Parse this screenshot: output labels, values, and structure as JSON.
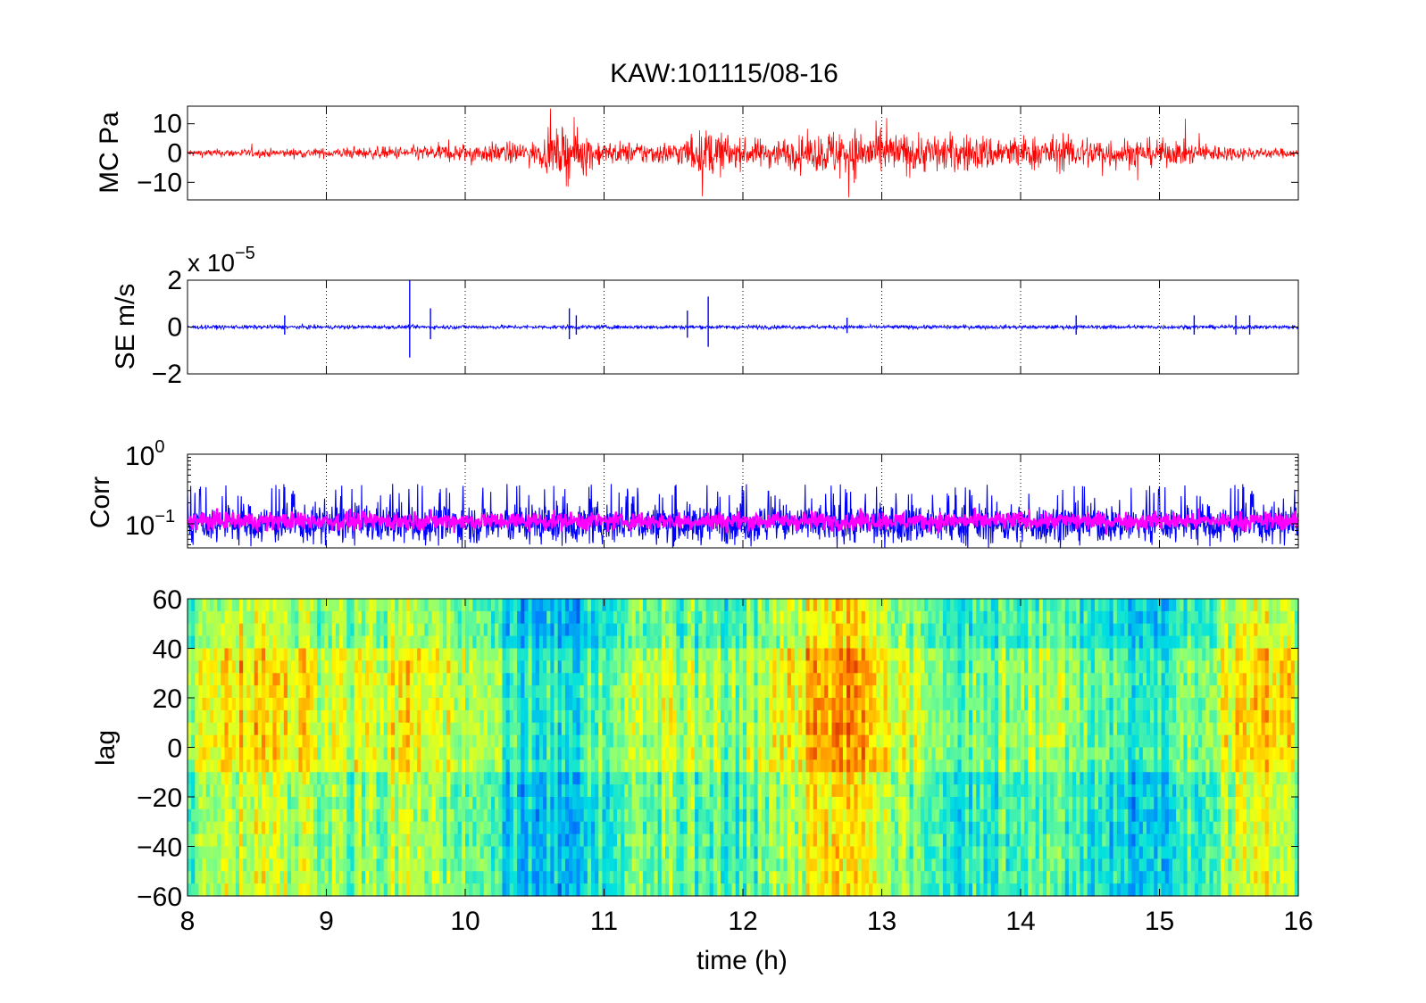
{
  "figure": {
    "title": "KAW:101115/08-16",
    "background": "#ffffff"
  },
  "chart_data": [
    {
      "type": "line",
      "ylabel": "MC Pa",
      "xlim": [
        8,
        16
      ],
      "ylim": [
        -16,
        16
      ],
      "yticks": [
        -10,
        0,
        10
      ],
      "ytick_labels": [
        "−10",
        "0",
        "10"
      ],
      "color": "#ff0000",
      "grid": "vertical-dotted",
      "series": [
        {
          "x": [
            8,
            8.5,
            9,
            9.5,
            10,
            10.5,
            10.75,
            11,
            11.5,
            11.75,
            12,
            12.5,
            12.7,
            13,
            13.5,
            14,
            14.5,
            15,
            15.5,
            16
          ],
          "envelope": [
            2,
            2.2,
            2.5,
            3.5,
            5,
            6,
            15,
            6,
            6,
            13,
            7,
            9,
            14,
            11,
            10,
            9,
            9,
            7,
            4,
            2
          ]
        }
      ]
    },
    {
      "type": "line",
      "ylabel": "SE m/s",
      "scale_label": "x 10",
      "scale_exponent": "−5",
      "xlim": [
        8,
        16
      ],
      "ylim": [
        -2,
        2
      ],
      "yticks": [
        -2,
        0,
        2
      ],
      "ytick_labels": [
        "−2",
        "0",
        "2"
      ],
      "color": "#0000ff",
      "grid": "vertical-dotted",
      "series": [
        {
          "x": [
            8,
            8.7,
            9.6,
            9.75,
            10.75,
            11.5,
            11.75,
            12.5,
            13.5,
            14.4,
            15.15,
            15.25,
            15.55,
            16
          ],
          "spike_x": [
            8.7,
            9.6,
            9.75,
            10.75,
            10.8,
            11.6,
            11.75,
            12.75,
            14.4,
            15.25,
            15.55,
            15.65
          ],
          "spike_amp": [
            0.5,
            2.0,
            0.8,
            0.8,
            0.5,
            0.7,
            1.3,
            0.4,
            0.5,
            0.5,
            0.5,
            0.5
          ],
          "noise_level": 0.2
        }
      ]
    },
    {
      "type": "line",
      "ylabel": "Corr",
      "yscale": "log",
      "xlim": [
        8,
        16
      ],
      "ylim": [
        0.045,
        1
      ],
      "yticks_labels": [
        {
          "base": "10",
          "exp": "0",
          "value": 1
        },
        {
          "base": "10",
          "exp": "−1",
          "value": 0.1
        }
      ],
      "grid": "vertical-dotted",
      "series": [
        {
          "name": "",
          "color": "#0000ff",
          "median": 0.1,
          "spread_high": 0.25
        },
        {
          "name": "",
          "color": "#ff00ff",
          "median": 0.11,
          "spread_high": 0.15
        }
      ]
    },
    {
      "type": "heatmap",
      "ylabel": "lag",
      "xlabel": "time (h)",
      "xlim": [
        8,
        16
      ],
      "ylim": [
        -60,
        60
      ],
      "xticks": [
        8,
        9,
        10,
        11,
        12,
        13,
        14,
        15,
        16
      ],
      "xtick_labels": [
        "8",
        "9",
        "10",
        "11",
        "12",
        "13",
        "14",
        "15",
        "16"
      ],
      "yticks": [
        -60,
        -40,
        -20,
        0,
        20,
        40,
        60
      ],
      "ytick_labels": [
        "−60",
        "−40",
        "−20",
        "0",
        "20",
        "40",
        "60"
      ],
      "colormap": [
        "#0000a0",
        "#0080ff",
        "#00e0e0",
        "#80ff80",
        "#ffff00",
        "#ff8000",
        "#c00000"
      ],
      "dominant_colors": [
        "#40e0a0",
        "#a0f060",
        "#e0f020"
      ]
    }
  ]
}
